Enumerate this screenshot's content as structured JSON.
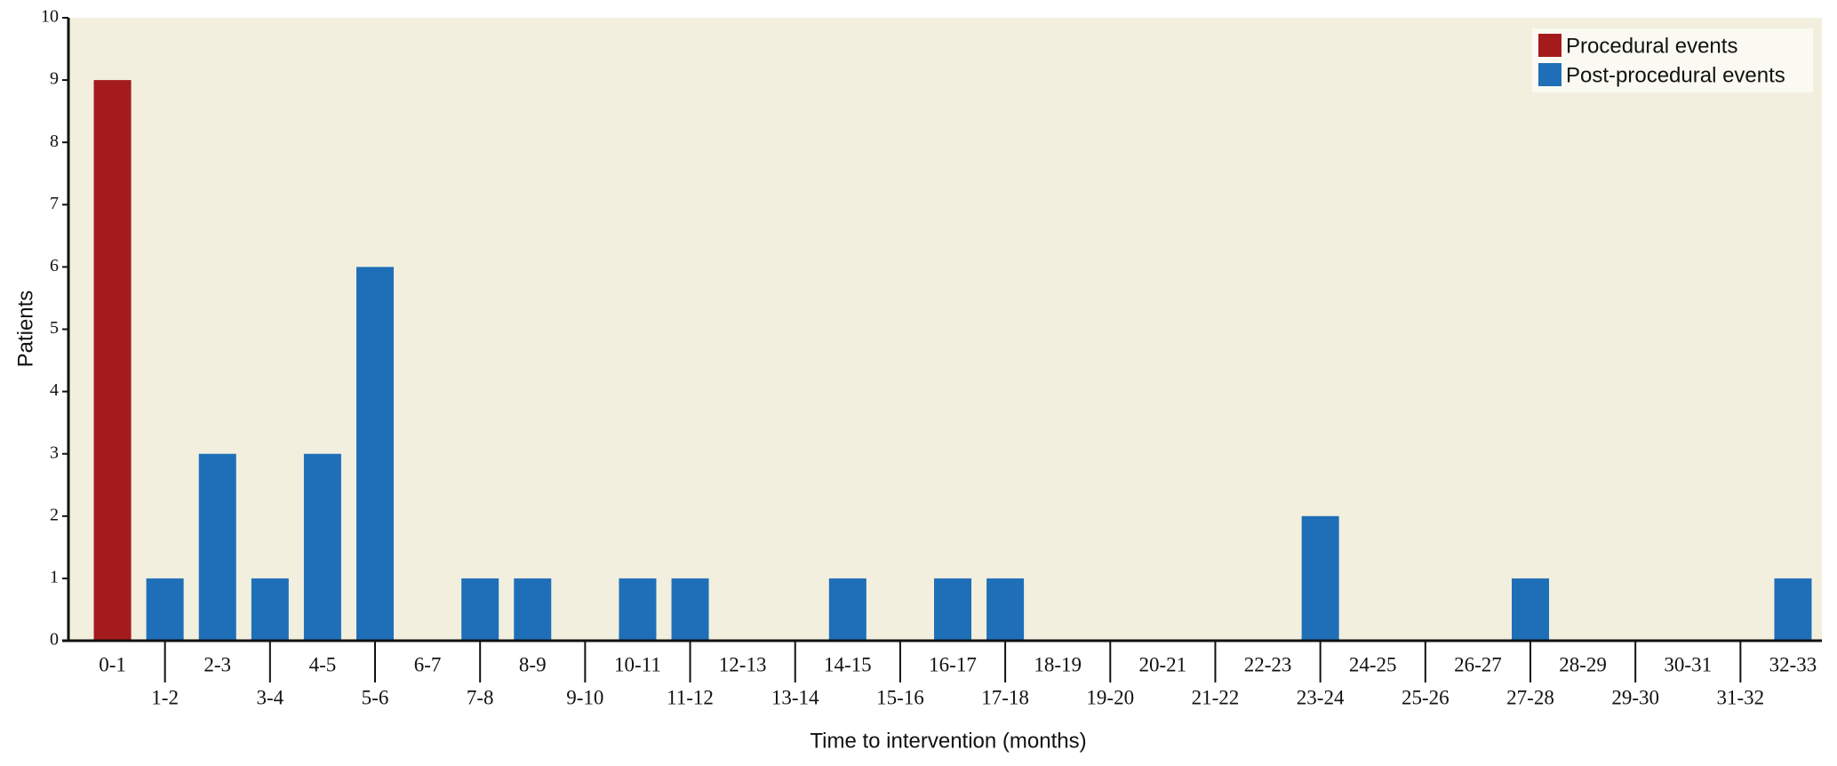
{
  "chart_data": {
    "type": "bar",
    "stacked": true,
    "x_label": "Time to intervention (months)",
    "y_label": "Patients",
    "categories": [
      "0-1",
      "1-2",
      "2-3",
      "3-4",
      "4-5",
      "5-6",
      "6-7",
      "7-8",
      "8-9",
      "9-10",
      "10-11",
      "11-12",
      "12-13",
      "13-14",
      "14-15",
      "15-16",
      "16-17",
      "17-18",
      "18-19",
      "19-20",
      "20-21",
      "21-22",
      "22-23",
      "23-24",
      "24-25",
      "25-26",
      "26-27",
      "27-28",
      "28-29",
      "29-30",
      "30-31",
      "31-32",
      "32-33"
    ],
    "series": [
      {
        "name": "Procedural events",
        "color": "#a51b1b",
        "values": [
          9,
          0,
          0,
          0,
          0,
          0,
          0,
          0,
          0,
          0,
          0,
          0,
          0,
          0,
          0,
          0,
          0,
          0,
          0,
          0,
          0,
          0,
          0,
          0,
          0,
          0,
          0,
          0,
          0,
          0,
          0,
          0,
          0
        ]
      },
      {
        "name": "Post-procedural events",
        "color": "#1f6fb8",
        "values": [
          0,
          1,
          3,
          1,
          3,
          6,
          0,
          1,
          1,
          0,
          1,
          1,
          0,
          0,
          1,
          0,
          1,
          1,
          0,
          0,
          0,
          0,
          0,
          2,
          0,
          0,
          0,
          1,
          0,
          0,
          0,
          0,
          1
        ]
      }
    ],
    "ylim": [
      0,
      10
    ],
    "yticks": [
      0,
      1,
      2,
      3,
      4,
      5,
      6,
      7,
      8,
      9,
      10
    ],
    "legend": "upper right",
    "background": "#f2efdf"
  }
}
